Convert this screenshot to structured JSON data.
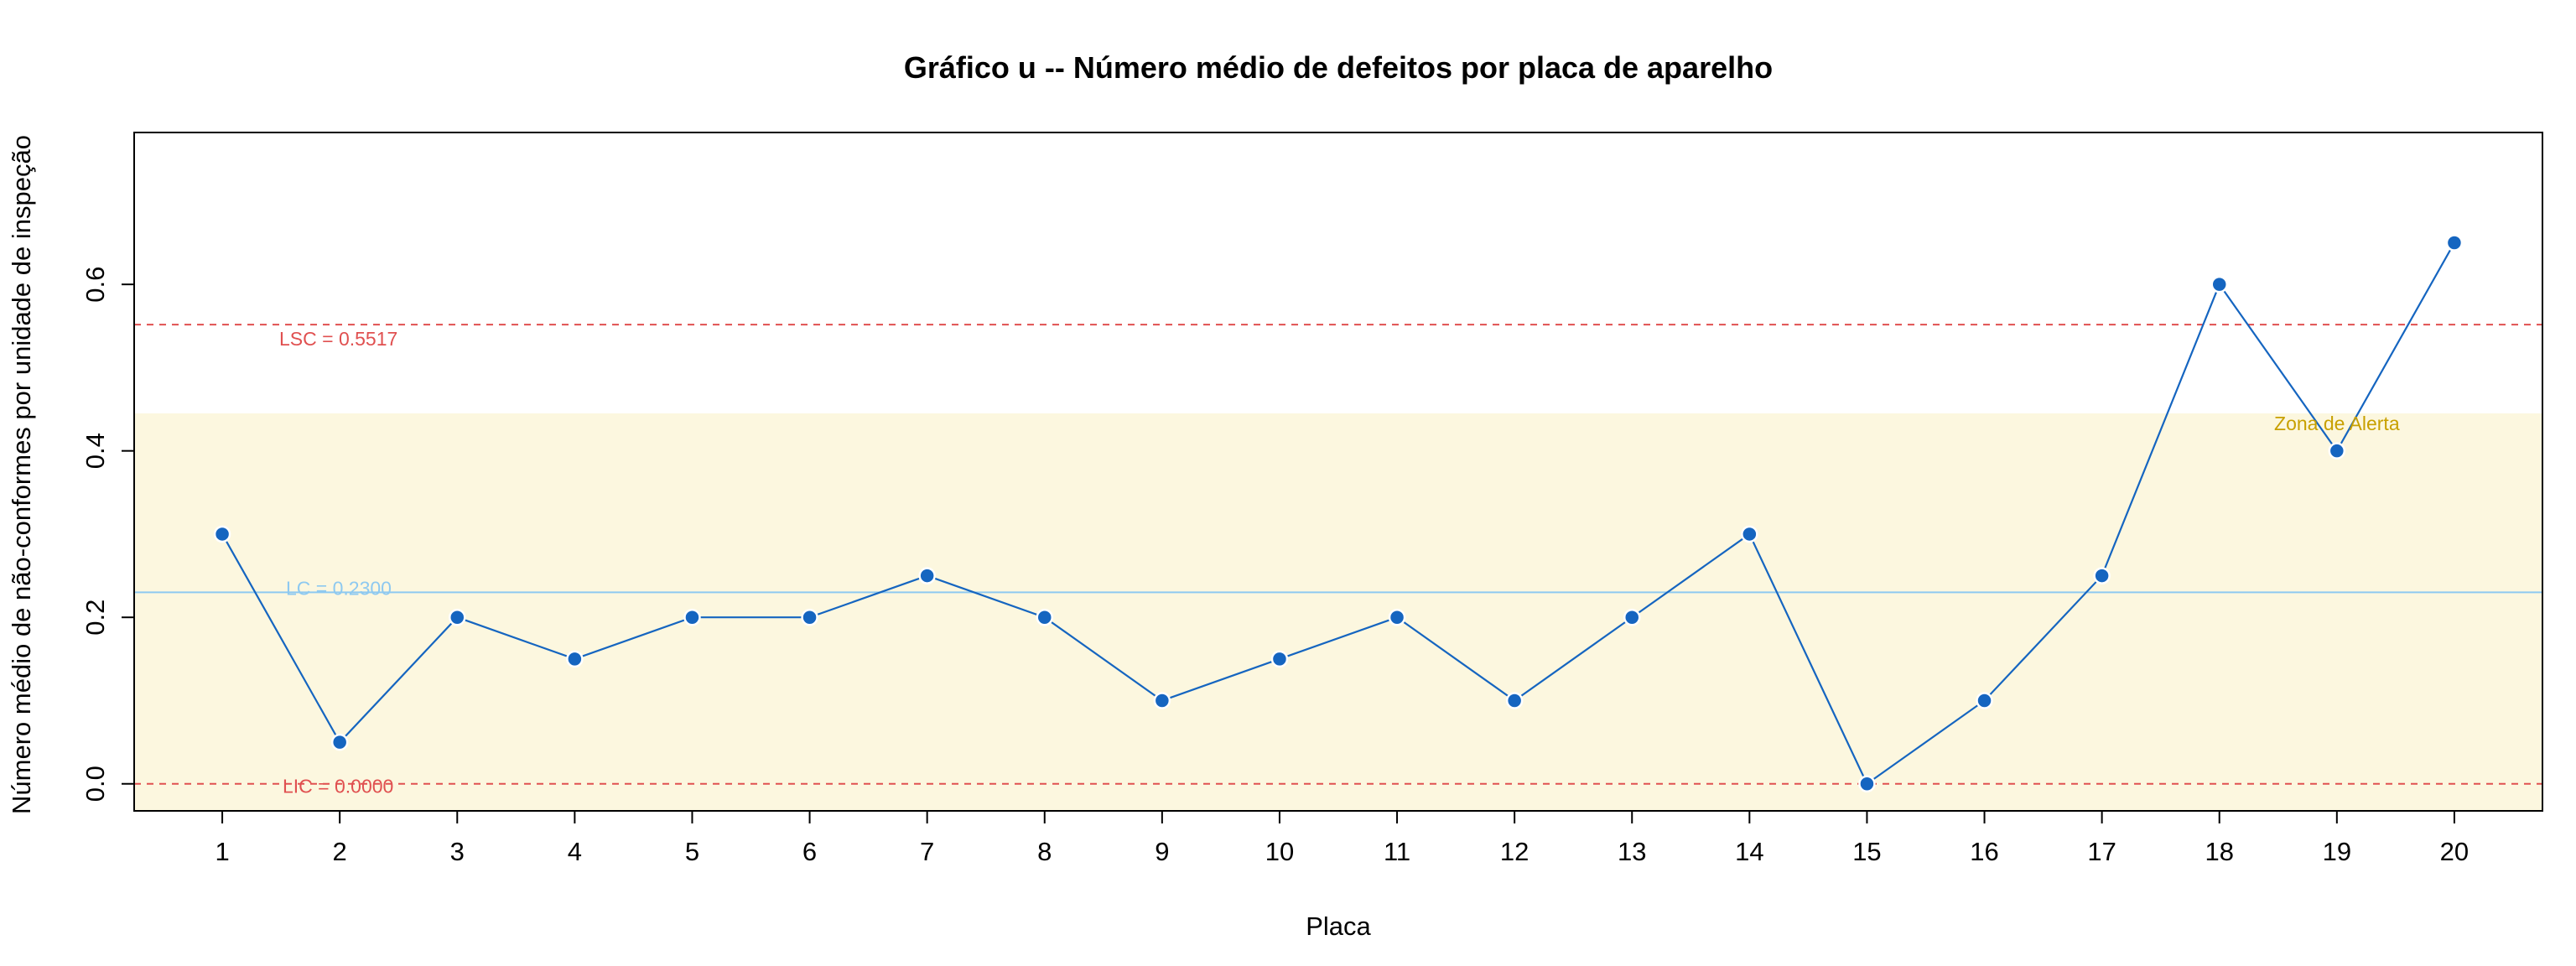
{
  "chart_data": {
    "type": "line",
    "title": "Gráfico u -- Número médio de defeitos por placa de aparelho",
    "xlabel": "Placa",
    "ylabel": "Número médio de não-conformes por unidade de inspeção",
    "x": [
      1,
      2,
      3,
      4,
      5,
      6,
      7,
      8,
      9,
      10,
      11,
      12,
      13,
      14,
      15,
      16,
      17,
      18,
      19,
      20
    ],
    "series": [
      {
        "values": [
          0.3,
          0.05,
          0.2,
          0.15,
          0.2,
          0.2,
          0.25,
          0.2,
          0.1,
          0.15,
          0.2,
          0.1,
          0.2,
          0.3,
          0.0,
          0.1,
          0.25,
          0.6,
          0.4,
          0.65
        ],
        "color": "#1565C0"
      }
    ],
    "xlim": [
      0.25,
      20.75
    ],
    "ylim": [
      -0.0325,
      0.7825
    ],
    "yticks": [
      0.0,
      0.2,
      0.4,
      0.6
    ],
    "ytick_labels": [
      "0.0",
      "0.2",
      "0.4",
      "0.6"
    ],
    "xticks": [
      1,
      2,
      3,
      4,
      5,
      6,
      7,
      8,
      9,
      10,
      11,
      12,
      13,
      14,
      15,
      16,
      17,
      18,
      19,
      20
    ],
    "xtick_labels": [
      "1",
      "2",
      "3",
      "4",
      "5",
      "6",
      "7",
      "8",
      "9",
      "10",
      "11",
      "12",
      "13",
      "14",
      "15",
      "16",
      "17",
      "18",
      "19",
      "20"
    ],
    "reference_lines": [
      {
        "label": "LSC = 0.5517",
        "value": 0.5517,
        "style": "dashed",
        "color": "#E05050"
      },
      {
        "label": "LC = 0.2300",
        "value": 0.23,
        "style": "solid",
        "color": "#8EC9F0"
      },
      {
        "label": "LIC = 0.0000",
        "value": 0.0,
        "style": "dashed",
        "color": "#E05050"
      }
    ],
    "alert_zone": {
      "label": "Zona de Alerta",
      "y_from": -0.0325,
      "y_to": 0.445,
      "fill": "#FCF7DF",
      "label_color": "#C8A000"
    },
    "grid": false,
    "legend": "none"
  }
}
